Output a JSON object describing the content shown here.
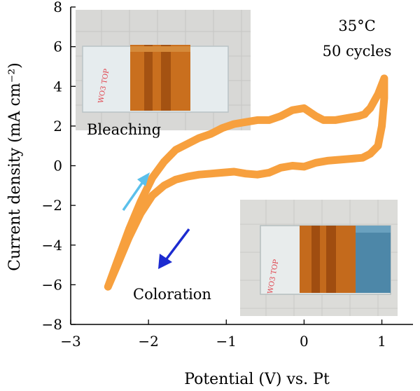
{
  "chart_data": {
    "type": "line",
    "xlabel": "Potential (V) vs. Pt",
    "ylabel": "Current density (mA cm⁻²)",
    "xlim": [
      -3,
      1.4
    ],
    "ylim": [
      -8,
      8
    ],
    "xticks": [
      "−3",
      "−2",
      "−1",
      "0",
      "1"
    ],
    "xtick_values": [
      -3,
      -2,
      -1,
      0,
      1
    ],
    "yticks": [
      "−8",
      "−6",
      "−4",
      "−2",
      "0",
      "2",
      "4",
      "6",
      "8"
    ],
    "ytick_values": [
      -8,
      -6,
      -4,
      -2,
      0,
      2,
      4,
      6,
      8
    ],
    "grid": false,
    "series_color": "#F7A03E",
    "annotations": {
      "temperature": "35°C",
      "cycles": "50 cycles",
      "bleaching_label": "Bleaching",
      "coloration_label": "Coloration",
      "sample_label": "WO3 TOP"
    },
    "arrow_colors": {
      "bleaching": "#5BC0EB",
      "coloration": "#1C2BD0"
    },
    "series": [
      {
        "x": [
          -2.52,
          -2.4,
          -2.25,
          -2.1,
          -1.95,
          -1.8,
          -1.65,
          -1.5,
          -1.35,
          -1.2,
          -1.05,
          -0.9,
          -0.75,
          -0.6,
          -0.45,
          -0.3,
          -0.15,
          0.0,
          0.15,
          0.3,
          0.45,
          0.6,
          0.75,
          0.85,
          0.95,
          1.0,
          1.03,
          1.03,
          0.95,
          0.85,
          0.8,
          0.78,
          0.7,
          0.55,
          0.4,
          0.25,
          0.15,
          0.0,
          -0.15,
          -0.3,
          -0.45,
          -0.6,
          -0.75,
          -0.9,
          -1.05,
          -1.2,
          -1.35,
          -1.5,
          -1.65,
          -1.8,
          -1.95,
          -2.1,
          -2.25,
          -2.4,
          -2.52
        ],
        "y": [
          -6.1,
          -5.0,
          -3.6,
          -2.4,
          -1.5,
          -1.0,
          -0.7,
          -0.55,
          -0.45,
          -0.4,
          -0.35,
          -0.3,
          -0.4,
          -0.45,
          -0.35,
          -0.1,
          0.0,
          -0.05,
          0.15,
          0.25,
          0.3,
          0.35,
          0.4,
          0.6,
          1.0,
          2.0,
          3.4,
          4.4,
          3.6,
          2.9,
          2.7,
          2.6,
          2.5,
          2.4,
          2.3,
          2.3,
          2.5,
          2.9,
          2.8,
          2.5,
          2.3,
          2.3,
          2.2,
          2.1,
          1.9,
          1.6,
          1.4,
          1.1,
          0.8,
          0.2,
          -0.6,
          -1.8,
          -3.2,
          -4.8,
          -6.1
        ]
      }
    ]
  }
}
